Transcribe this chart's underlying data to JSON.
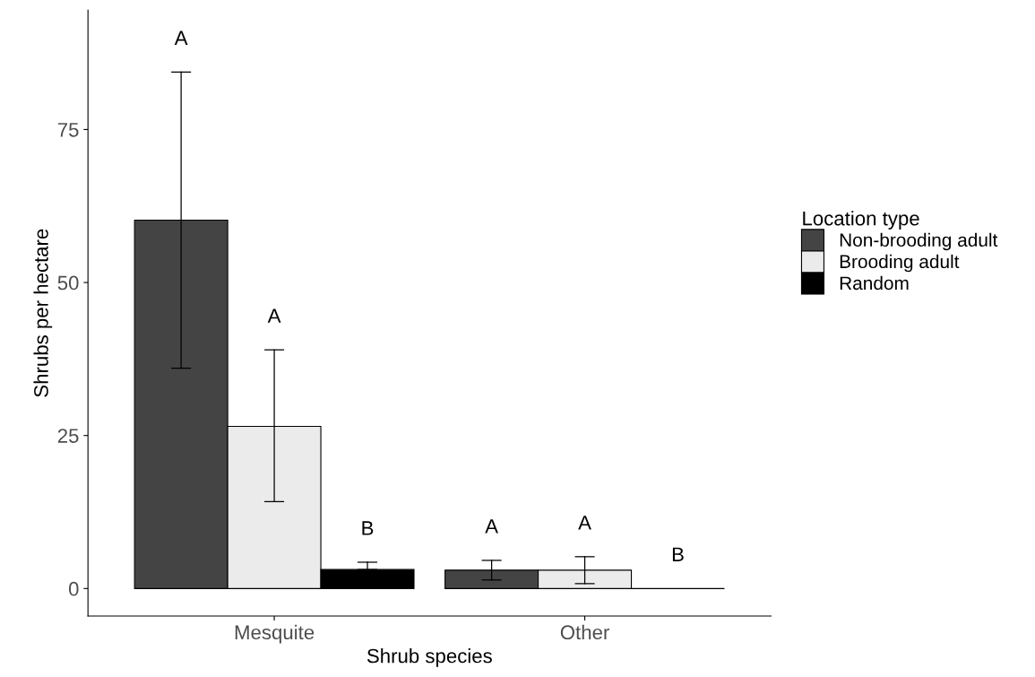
{
  "chart_data": {
    "type": "bar",
    "xlabel": "Shrub species",
    "ylabel": "Shrubs per hectare",
    "legend_title": "Location type",
    "categories": [
      "Mesquite",
      "Other"
    ],
    "series": [
      {
        "name": "Non-brooding adult",
        "color": "#444444",
        "values": [
          60.2,
          3.0
        ],
        "errors": [
          [
            36.0,
            84.4
          ],
          [
            1.4,
            4.6
          ]
        ]
      },
      {
        "name": "Brooding adult",
        "color": "#ebebeb",
        "values": [
          26.5,
          3.0
        ],
        "errors": [
          [
            14.2,
            39.0
          ],
          [
            0.8,
            5.2
          ]
        ]
      },
      {
        "name": "Random",
        "color": "#000000",
        "values": [
          3.1,
          0
        ],
        "errors": [
          [
            3.1,
            4.3
          ],
          null
        ]
      }
    ],
    "annotations": [
      "A",
      "A",
      "B",
      "A",
      "A",
      "B"
    ],
    "ylim": [
      -4.5,
      94.5
    ],
    "yticks": [
      0,
      25,
      50,
      75
    ],
    "grid": false,
    "legend": "right"
  }
}
